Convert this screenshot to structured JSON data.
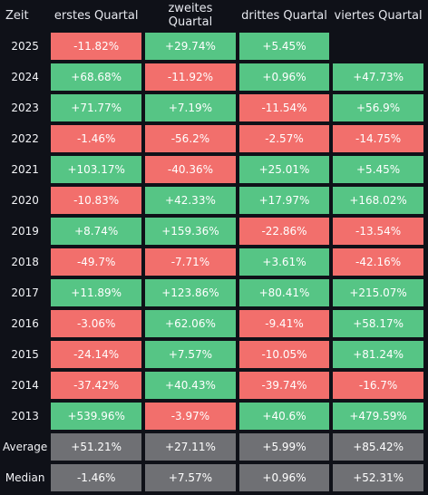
{
  "table": {
    "headers": [
      "Zeit",
      "erstes Quartal",
      "zweites Quartal",
      "drittes Quartal",
      "viertes Quartal"
    ],
    "rows": [
      {
        "year": "2025",
        "q": [
          "-11.82%",
          "+29.74%",
          "+5.45%",
          ""
        ]
      },
      {
        "year": "2024",
        "q": [
          "+68.68%",
          "-11.92%",
          "+0.96%",
          "+47.73%"
        ]
      },
      {
        "year": "2023",
        "q": [
          "+71.77%",
          "+7.19%",
          "-11.54%",
          "+56.9%"
        ]
      },
      {
        "year": "2022",
        "q": [
          "-1.46%",
          "-56.2%",
          "-2.57%",
          "-14.75%"
        ]
      },
      {
        "year": "2021",
        "q": [
          "+103.17%",
          "-40.36%",
          "+25.01%",
          "+5.45%"
        ]
      },
      {
        "year": "2020",
        "q": [
          "-10.83%",
          "+42.33%",
          "+17.97%",
          "+168.02%"
        ]
      },
      {
        "year": "2019",
        "q": [
          "+8.74%",
          "+159.36%",
          "-22.86%",
          "-13.54%"
        ]
      },
      {
        "year": "2018",
        "q": [
          "-49.7%",
          "-7.71%",
          "+3.61%",
          "-42.16%"
        ]
      },
      {
        "year": "2017",
        "q": [
          "+11.89%",
          "+123.86%",
          "+80.41%",
          "+215.07%"
        ]
      },
      {
        "year": "2016",
        "q": [
          "-3.06%",
          "+62.06%",
          "-9.41%",
          "+58.17%"
        ]
      },
      {
        "year": "2015",
        "q": [
          "-24.14%",
          "+7.57%",
          "-10.05%",
          "+81.24%"
        ]
      },
      {
        "year": "2014",
        "q": [
          "-37.42%",
          "+40.43%",
          "-39.74%",
          "-16.7%"
        ]
      },
      {
        "year": "2013",
        "q": [
          "+539.96%",
          "-3.97%",
          "+40.6%",
          "+479.59%"
        ]
      }
    ],
    "stats": [
      {
        "label": "Average",
        "q": [
          "+51.21%",
          "+27.11%",
          "+5.99%",
          "+85.42%"
        ]
      },
      {
        "label": "Median",
        "q": [
          "-1.46%",
          "+7.57%",
          "+0.96%",
          "+52.31%"
        ]
      }
    ]
  },
  "colors": {
    "positive": "#56c585",
    "negative": "#f26f6c",
    "stat": "#6f7074",
    "background": "#0f1118"
  }
}
